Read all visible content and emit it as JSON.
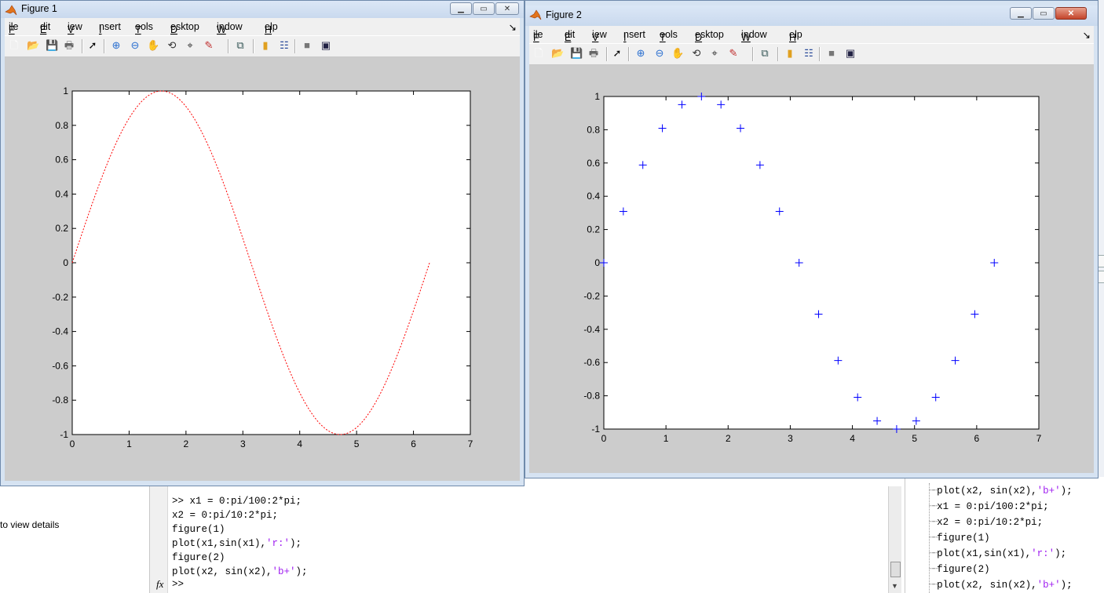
{
  "desktop": {
    "left_hint": "to view details",
    "command_lines": [
      [
        ">> x1 = 0:pi/100:2*pi;",
        ""
      ],
      [
        "x2 = 0:pi/10:2*pi;",
        ""
      ],
      [
        "figure(1)",
        ""
      ],
      [
        "plot(x1,sin(x1),",
        "'r:'",
        ");"
      ],
      [
        "figure(2)",
        ""
      ],
      [
        "plot(x2, sin(x2),",
        "'b+'",
        ");"
      ]
    ],
    "fx_label": "fx",
    "prompt": ">>",
    "history": [
      [
        "plot(x2, sin(x2),",
        "'b+'",
        ");"
      ],
      [
        "x1 = 0:pi/100:2*pi;",
        ""
      ],
      [
        "x2 = 0:pi/10:2*pi;",
        ""
      ],
      [
        "figure(1)",
        ""
      ],
      [
        "plot(x1,sin(x1),",
        "'r:'",
        ");"
      ],
      [
        "figure(2)",
        ""
      ],
      [
        "plot(x2, sin(x2),",
        "'b+'",
        ");"
      ]
    ]
  },
  "menus": [
    "File",
    "Edit",
    "View",
    "Insert",
    "Tools",
    "Desktop",
    "Window",
    "Help"
  ],
  "toolbar_icons": [
    "new-figure-icon",
    "open-file-icon",
    "save-icon",
    "print-icon",
    "edit-plot-arrow-icon",
    "zoom-in-icon",
    "zoom-out-icon",
    "pan-hand-icon",
    "rotate-3d-icon",
    "data-cursor-icon",
    "brush-icon",
    "link-plot-icon",
    "colorbar-icon",
    "legend-icon",
    "hide-plot-tools-icon",
    "show-plot-tools-icon"
  ],
  "figure1": {
    "title": "Figure 1",
    "color": "#ff0000"
  },
  "figure2": {
    "title": "Figure 2",
    "color": "#0000ff"
  },
  "chart_data": [
    {
      "type": "line",
      "line_style": "dotted",
      "function": "sin(x1)",
      "x": {
        "start": 0,
        "stop": 6.2832,
        "step": 0.031416
      },
      "xlim": [
        0,
        7
      ],
      "ylim": [
        -1,
        1
      ],
      "xticks": [
        "0",
        "1",
        "2",
        "3",
        "4",
        "5",
        "6",
        "7"
      ],
      "yticks": [
        "1",
        "0.8",
        "0.6",
        "0.4",
        "0.2",
        "0",
        "-0.2",
        "-0.4",
        "-0.6",
        "-0.8",
        "-1"
      ],
      "color": "#ff0000"
    },
    {
      "type": "scatter",
      "marker": "+",
      "x": [
        0,
        0.314,
        0.628,
        0.942,
        1.257,
        1.571,
        1.885,
        2.199,
        2.513,
        2.827,
        3.142,
        3.456,
        3.77,
        4.084,
        4.398,
        4.712,
        5.027,
        5.341,
        5.655,
        5.969,
        6.283
      ],
      "y": [
        0,
        0.309,
        0.588,
        0.809,
        0.951,
        1,
        0.951,
        0.809,
        0.588,
        0.309,
        0,
        -0.309,
        -0.588,
        -0.809,
        -0.951,
        -1,
        -0.951,
        -0.809,
        -0.588,
        -0.309,
        0
      ],
      "xlim": [
        0,
        7
      ],
      "ylim": [
        -1,
        1
      ],
      "xticks": [
        "0",
        "1",
        "2",
        "3",
        "4",
        "5",
        "6",
        "7"
      ],
      "yticks": [
        "1",
        "0.8",
        "0.6",
        "0.4",
        "0.2",
        "0",
        "-0.2",
        "-0.4",
        "-0.6",
        "-0.8",
        "-1"
      ],
      "color": "#0000ff"
    }
  ]
}
